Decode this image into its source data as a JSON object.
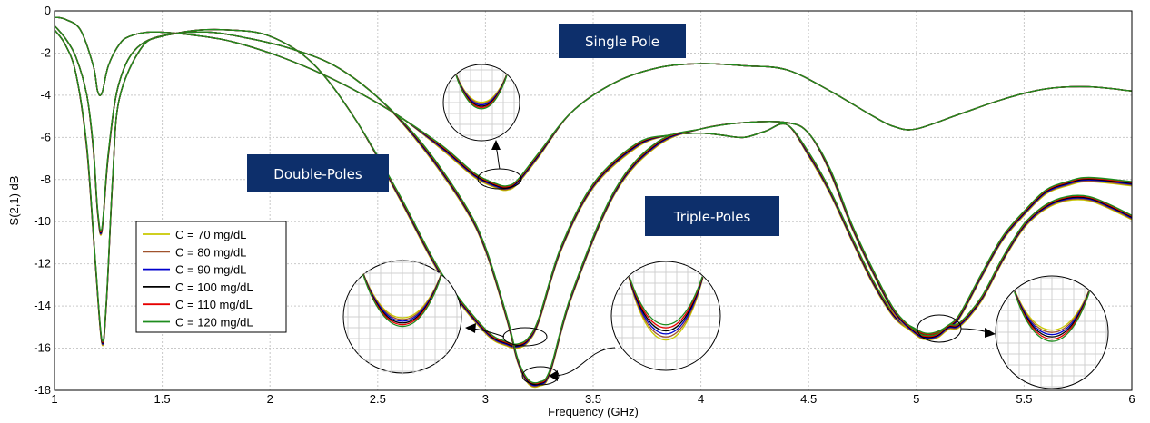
{
  "chart_data": {
    "type": "line",
    "xlabel": "Frequency (GHz)",
    "ylabel": "S(2,1) dB",
    "xlim": [
      1,
      6
    ],
    "ylim": [
      -18,
      0
    ],
    "xticks": [
      "1",
      "1.5",
      "2",
      "2.5",
      "3",
      "3.5",
      "4",
      "4.5",
      "5",
      "5.5",
      "6"
    ],
    "yticks": [
      "0",
      "-2",
      "-4",
      "-6",
      "-8",
      "-10",
      "-12",
      "-14",
      "-16",
      "-18"
    ],
    "grid": true,
    "legend_position": "left",
    "legend": [
      {
        "label": "C = 70 mg/dL",
        "color": "#c8c800"
      },
      {
        "label": "C = 80 mg/dL",
        "color": "#a0522d"
      },
      {
        "label": "C = 90 mg/dL",
        "color": "#0000cd"
      },
      {
        "label": "C = 100 mg/dL",
        "color": "#000000"
      },
      {
        "label": "C = 110 mg/dL",
        "color": "#e60000"
      },
      {
        "label": "C = 120 mg/dL",
        "color": "#1e8c1e"
      }
    ],
    "annotations": [
      {
        "text": "Single Pole",
        "fill": "#0d2f6b"
      },
      {
        "text": "Double-Poles",
        "fill": "#0d2f6b"
      },
      {
        "text": "Triple-Poles",
        "fill": "#0d2f6b"
      }
    ],
    "curves": [
      {
        "group": "single-pole",
        "x": [
          1.0,
          1.05,
          1.12,
          1.18,
          1.2,
          1.22,
          1.25,
          1.3,
          1.35,
          1.45,
          1.6,
          1.8,
          2.0,
          2.2,
          2.4,
          2.6,
          2.8,
          2.95,
          3.05,
          3.1,
          3.15,
          3.25,
          3.4,
          3.6,
          3.8,
          4.0,
          4.2,
          4.4,
          4.6,
          4.8,
          4.9,
          5.0,
          5.2,
          5.4,
          5.6,
          5.8,
          6.0
        ],
        "y": [
          -0.3,
          -0.4,
          -0.9,
          -2.6,
          -3.8,
          -3.9,
          -2.6,
          -1.6,
          -1.2,
          -1.0,
          -1.1,
          -1.4,
          -2.0,
          -2.8,
          -3.8,
          -5.0,
          -6.5,
          -7.8,
          -8.3,
          -8.4,
          -8.1,
          -6.8,
          -4.8,
          -3.4,
          -2.7,
          -2.5,
          -2.6,
          -2.8,
          -3.8,
          -5.0,
          -5.5,
          -5.6,
          -4.9,
          -4.2,
          -3.7,
          -3.6,
          -3.8
        ]
      },
      {
        "group": "double-poles",
        "x": [
          1.0,
          1.05,
          1.1,
          1.15,
          1.18,
          1.2,
          1.22,
          1.25,
          1.3,
          1.4,
          1.6,
          1.8,
          2.0,
          2.2,
          2.4,
          2.6,
          2.8,
          3.0,
          3.1,
          3.15,
          3.2,
          3.25,
          3.35,
          3.5,
          3.7,
          3.85,
          4.0,
          4.1,
          4.2,
          4.3,
          4.4,
          4.5,
          4.6,
          4.7,
          4.8,
          4.9,
          5.0,
          5.05,
          5.1,
          5.15,
          5.2,
          5.3,
          5.4,
          5.5,
          5.6,
          5.7,
          5.8,
          6.0
        ],
        "y": [
          -0.7,
          -1.3,
          -2.2,
          -4.0,
          -6.5,
          -9.5,
          -10.4,
          -6.8,
          -3.4,
          -1.6,
          -1.0,
          -0.9,
          -1.2,
          -2.5,
          -5.2,
          -8.8,
          -12.6,
          -15.2,
          -15.8,
          -15.9,
          -15.6,
          -14.6,
          -11.3,
          -8.3,
          -6.4,
          -5.9,
          -5.8,
          -5.9,
          -6.0,
          -5.7,
          -5.4,
          -6.8,
          -8.6,
          -10.8,
          -12.9,
          -14.5,
          -15.2,
          -15.4,
          -15.3,
          -15.0,
          -14.5,
          -12.6,
          -10.8,
          -9.6,
          -8.6,
          -8.2,
          -8.0,
          -8.2
        ]
      },
      {
        "group": "triple-poles",
        "x": [
          1.0,
          1.05,
          1.1,
          1.15,
          1.19,
          1.22,
          1.24,
          1.27,
          1.3,
          1.4,
          1.5,
          1.7,
          1.9,
          2.1,
          2.3,
          2.5,
          2.7,
          2.9,
          3.0,
          3.1,
          3.15,
          3.2,
          3.25,
          3.3,
          3.4,
          3.6,
          3.8,
          4.0,
          4.2,
          4.4,
          4.5,
          4.6,
          4.7,
          4.8,
          4.9,
          5.0,
          5.05,
          5.1,
          5.15,
          5.2,
          5.3,
          5.4,
          5.5,
          5.6,
          5.7,
          5.8,
          5.9,
          6.0
        ],
        "y": [
          -0.9,
          -1.6,
          -3.0,
          -6.5,
          -12.0,
          -15.7,
          -14.0,
          -8.0,
          -4.2,
          -1.8,
          -1.2,
          -1.0,
          -1.3,
          -1.8,
          -2.6,
          -4.1,
          -6.3,
          -9.2,
          -11.3,
          -14.6,
          -16.6,
          -17.6,
          -17.7,
          -17.1,
          -13.5,
          -8.6,
          -6.3,
          -5.6,
          -5.3,
          -5.3,
          -5.8,
          -7.6,
          -10.2,
          -12.4,
          -14.3,
          -15.3,
          -15.5,
          -15.4,
          -15.0,
          -14.9,
          -13.7,
          -11.8,
          -10.2,
          -9.3,
          -8.9,
          -8.9,
          -9.3,
          -9.8
        ]
      }
    ]
  }
}
